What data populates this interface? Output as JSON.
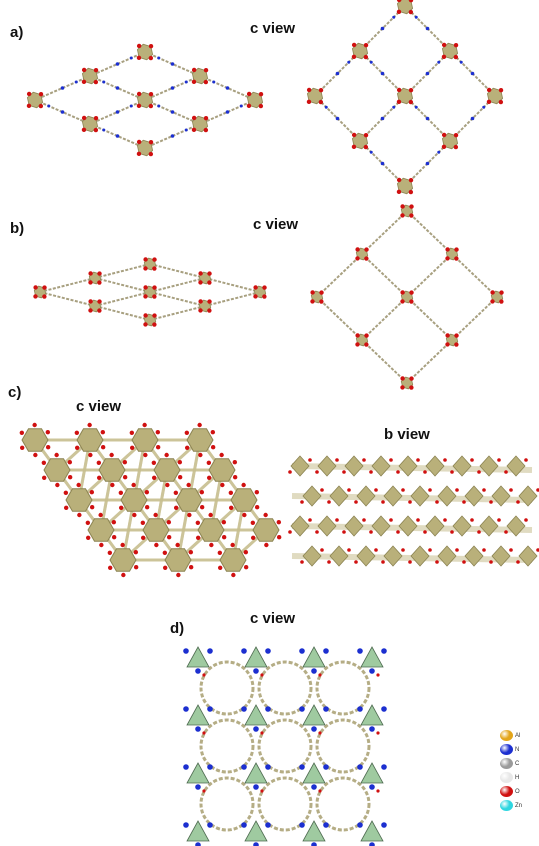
{
  "panels": {
    "a": {
      "label": "a)",
      "view": "c view"
    },
    "b": {
      "label": "b)",
      "view": "c view"
    },
    "c": {
      "label": "c)",
      "view_left": "c view",
      "view_right": "b view"
    },
    "d": {
      "label": "d)",
      "view": "c view"
    }
  },
  "legend": [
    {
      "name": "Al",
      "color": "#e3a51a"
    },
    {
      "name": "N",
      "color": "#1c2fd0"
    },
    {
      "name": "C",
      "color": "#9a9a9a"
    },
    {
      "name": "H",
      "color": "#e8e8e8"
    },
    {
      "name": "O",
      "color": "#d01010"
    },
    {
      "name": "Zn",
      "color": "#2fd6e0"
    }
  ],
  "colors": {
    "metal": "#b9b07a",
    "metal_dark": "#8c8452",
    "oxygen": "#d01010",
    "nitrogen": "#1c2fd0",
    "linker": "#a8a080",
    "polyhedron_green": "#9fcaa0"
  }
}
